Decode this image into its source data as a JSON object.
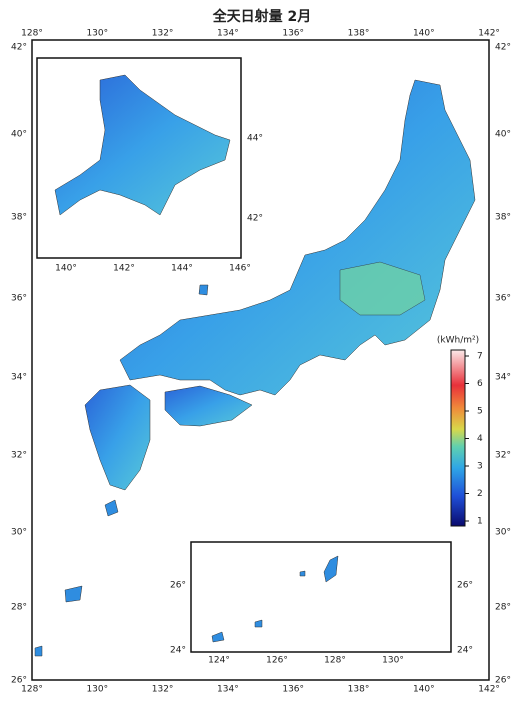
{
  "title": "全天日射量 2月",
  "main_map": {
    "lon_labels": [
      "128°",
      "130°",
      "132°",
      "134°",
      "136°",
      "138°",
      "140°",
      "142°"
    ],
    "lat_labels": [
      "42°",
      "40°",
      "38°",
      "36°",
      "34°",
      "32°",
      "30°",
      "28°",
      "26°"
    ]
  },
  "inset_hokkaido": {
    "lon_labels": [
      "140°",
      "142°",
      "144°",
      "146°"
    ],
    "lat_labels": [
      "44°",
      "42°"
    ]
  },
  "inset_okinawa": {
    "lon_labels": [
      "124°",
      "126°",
      "128°",
      "130°"
    ],
    "lat_labels": [
      "26°",
      "24°"
    ]
  },
  "colorbar": {
    "unit": "(kWh/m²)",
    "labels": [
      "1",
      "2",
      "3",
      "4",
      "5",
      "6",
      "7"
    ]
  }
}
